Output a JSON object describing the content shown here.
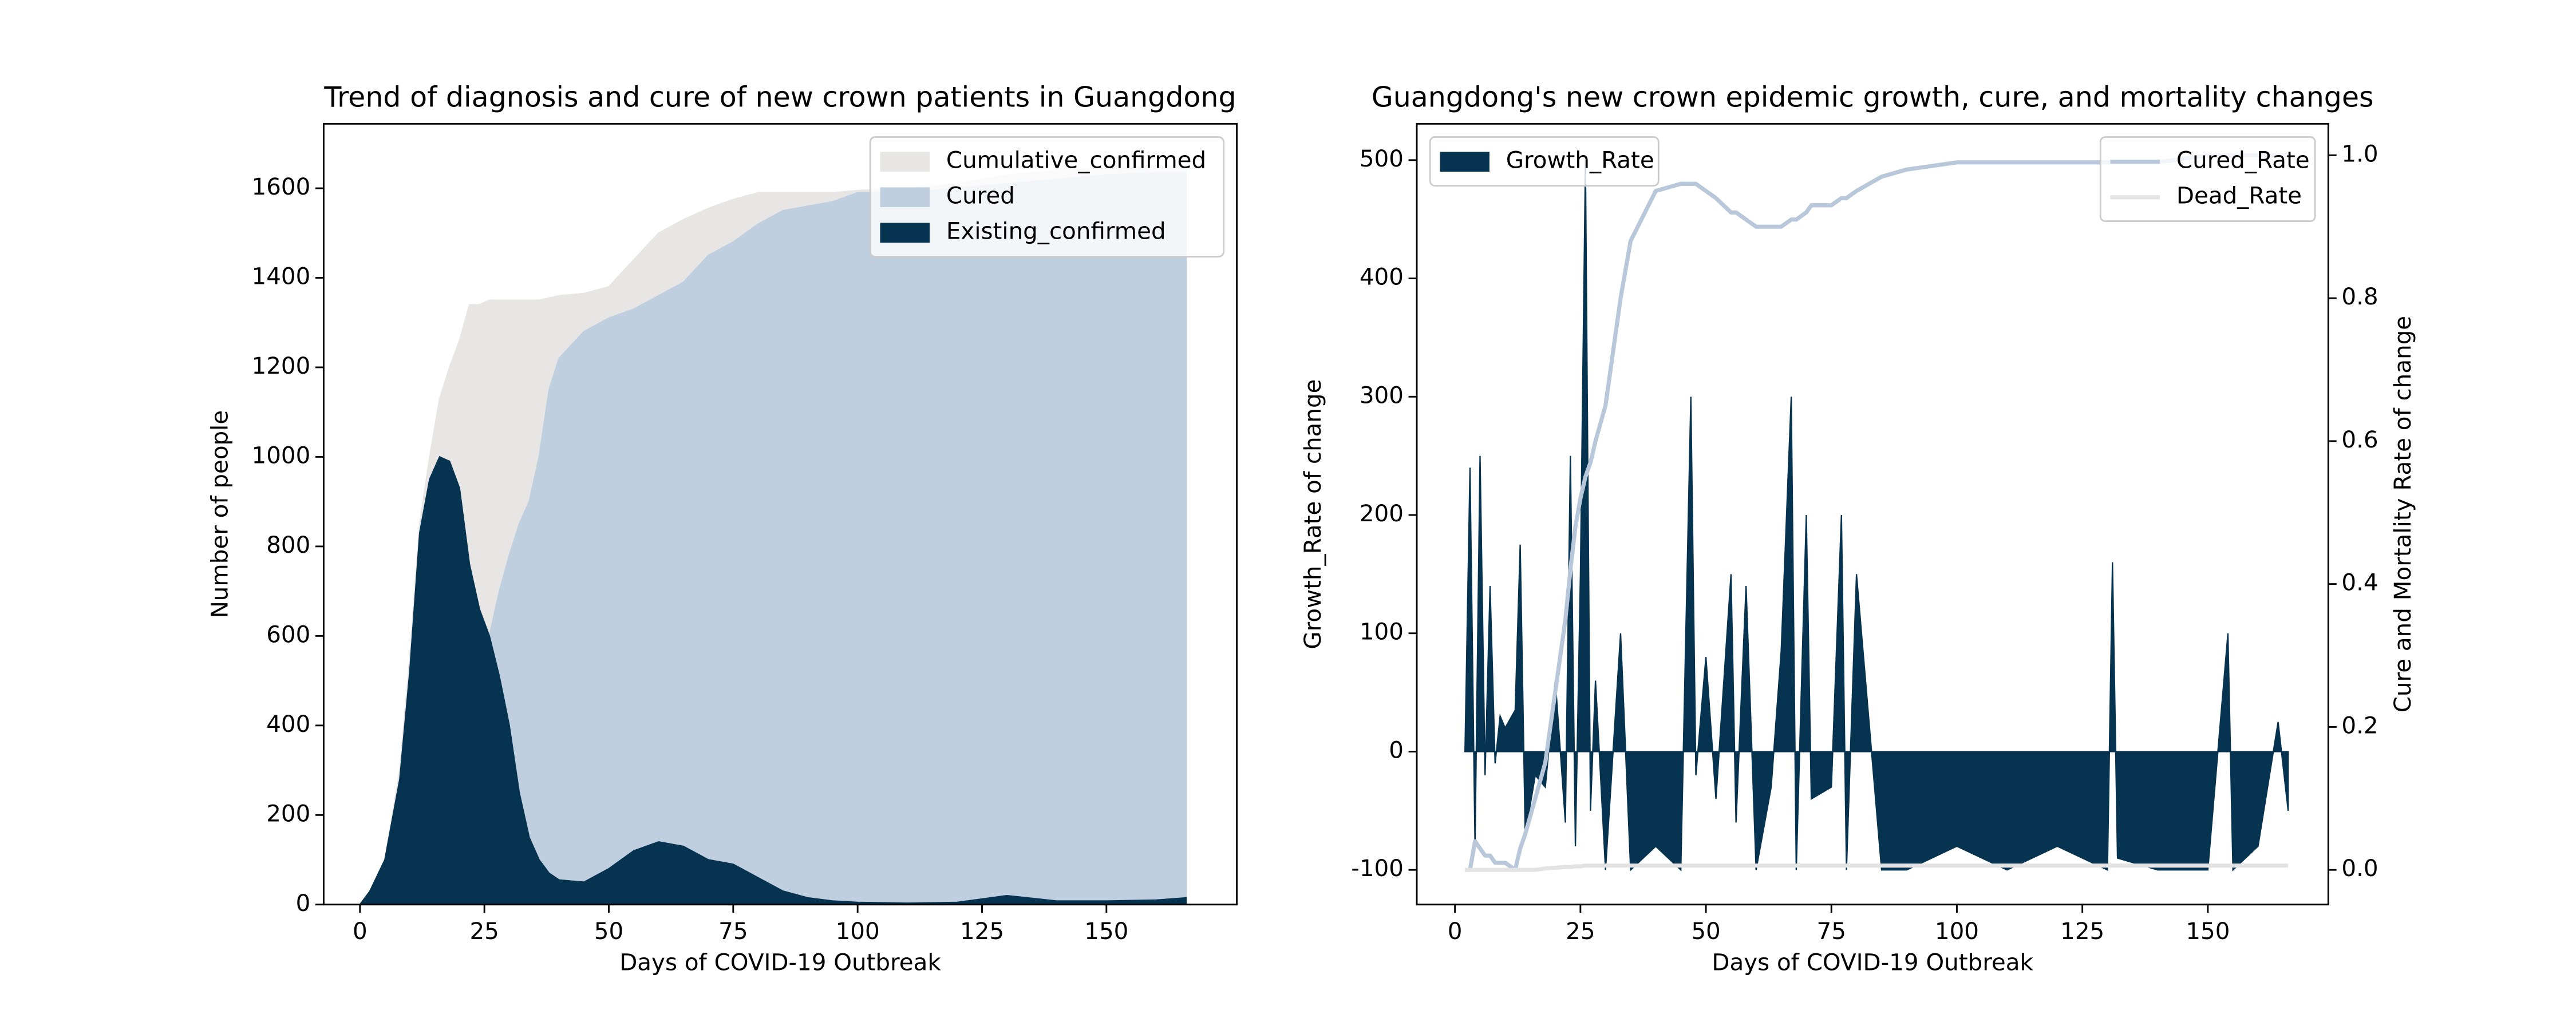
{
  "chart_data": [
    {
      "type": "area",
      "title": "Trend of diagnosis and cure of new crown patients in Guangdong",
      "xlabel": "Days of COVID-19 Outbreak",
      "ylabel": "Number of people",
      "x": [
        0,
        2,
        5,
        8,
        10,
        12,
        14,
        16,
        18,
        20,
        22,
        24,
        26,
        28,
        30,
        32,
        34,
        36,
        38,
        40,
        45,
        50,
        55,
        60,
        65,
        70,
        75,
        80,
        85,
        90,
        95,
        100,
        110,
        120,
        130,
        140,
        150,
        160,
        166
      ],
      "series": [
        {
          "name": "Cumulative_confirmed",
          "color": "#e8e6e5",
          "values": [
            0,
            30,
            100,
            300,
            550,
            850,
            1000,
            1130,
            1200,
            1260,
            1340,
            1340,
            1350,
            1350,
            1350,
            1350,
            1350,
            1350,
            1355,
            1360,
            1365,
            1380,
            1440,
            1500,
            1530,
            1555,
            1575,
            1590,
            1590,
            1590,
            1590,
            1595,
            1600,
            1610,
            1630,
            1640,
            1645,
            1650,
            1650
          ]
        },
        {
          "name": "Cured",
          "color": "#bfcfe0",
          "values": [
            0,
            0,
            0,
            0,
            0,
            0,
            20,
            50,
            150,
            300,
            400,
            500,
            600,
            700,
            780,
            850,
            900,
            1000,
            1150,
            1220,
            1280,
            1310,
            1330,
            1360,
            1390,
            1450,
            1480,
            1520,
            1550,
            1560,
            1570,
            1590,
            1590,
            1600,
            1610,
            1620,
            1630,
            1635,
            1635
          ]
        },
        {
          "name": "Existing_confirmed",
          "color": "#053350",
          "values": [
            0,
            30,
            100,
            280,
            520,
            830,
            950,
            1000,
            990,
            930,
            760,
            660,
            600,
            510,
            400,
            250,
            150,
            100,
            70,
            55,
            50,
            80,
            120,
            140,
            130,
            100,
            90,
            60,
            30,
            15,
            8,
            5,
            3,
            5,
            20,
            8,
            8,
            10,
            15
          ]
        }
      ],
      "xlim": [
        -7.3,
        176.2
      ],
      "ylim": [
        0,
        1744
      ],
      "xticks": [
        0,
        25,
        50,
        75,
        100,
        125,
        150
      ],
      "yticks": [
        0,
        200,
        400,
        600,
        800,
        1000,
        1200,
        1400,
        1600
      ],
      "legend": "upper right"
    },
    {
      "type": "combo",
      "title": "Guangdong's new crown epidemic growth, cure, and mortality changes",
      "xlabel": "Days of COVID-19 Outbreak",
      "ylabel": "Growth_Rate of change",
      "y2label": "Cure and Mortality Rate of change",
      "x": [
        2,
        3,
        4,
        5,
        6,
        7,
        8,
        9,
        10,
        12,
        13,
        14,
        16,
        18,
        20,
        22,
        23,
        24,
        25,
        26,
        27,
        28,
        30,
        33,
        35,
        40,
        45,
        47,
        48,
        50,
        52,
        55,
        56,
        58,
        60,
        63,
        65,
        67,
        68,
        70,
        71,
        75,
        77,
        78,
        80,
        85,
        90,
        100,
        110,
        120,
        130,
        131,
        132,
        140,
        150,
        154,
        155,
        160,
        164,
        166
      ],
      "series": [
        {
          "name": "Growth_Rate",
          "kind": "area",
          "color": "#053350",
          "values": [
            0,
            240,
            -80,
            250,
            -20,
            140,
            -10,
            30,
            20,
            35,
            175,
            -70,
            -20,
            -30,
            60,
            -60,
            250,
            -80,
            150,
            500,
            -50,
            60,
            -100,
            100,
            -100,
            -80,
            -100,
            300,
            -20,
            80,
            -40,
            150,
            -60,
            140,
            -100,
            -30,
            85,
            300,
            -100,
            200,
            -40,
            -30,
            200,
            -100,
            150,
            -100,
            -100,
            -80,
            -100,
            -80,
            -100,
            160,
            -90,
            -100,
            -100,
            100,
            -100,
            -80,
            25,
            -50
          ]
        },
        {
          "name": "Cured_Rate",
          "kind": "line",
          "axis": "y2",
          "color": "#b8c8da",
          "values": [
            0,
            0,
            0.04,
            0.03,
            0.02,
            0.02,
            0.01,
            0.01,
            0.01,
            0,
            0.03,
            0.05,
            0.1,
            0.15,
            0.25,
            0.35,
            0.42,
            0.48,
            0.52,
            0.55,
            0.57,
            0.6,
            0.65,
            0.8,
            0.88,
            0.95,
            0.96,
            0.96,
            0.96,
            0.95,
            0.94,
            0.92,
            0.92,
            0.91,
            0.9,
            0.9,
            0.9,
            0.91,
            0.91,
            0.92,
            0.93,
            0.93,
            0.94,
            0.94,
            0.95,
            0.97,
            0.98,
            0.99,
            0.99,
            0.99,
            0.99,
            0.99,
            0.99,
            0.99,
            1.0,
            1.0,
            1.0,
            1.0,
            1.0,
            1.0
          ]
        },
        {
          "name": "Dead_Rate",
          "kind": "line",
          "axis": "y2",
          "color": "#e3e3e3",
          "values": [
            0,
            0,
            0,
            0,
            0,
            0,
            0,
            0,
            0,
            0,
            0,
            0,
            0,
            0.002,
            0.003,
            0.004,
            0.004,
            0.005,
            0.005,
            0.006,
            0.006,
            0.006,
            0.006,
            0.006,
            0.006,
            0.006,
            0.006,
            0.006,
            0.006,
            0.006,
            0.006,
            0.006,
            0.006,
            0.006,
            0.006,
            0.006,
            0.006,
            0.006,
            0.006,
            0.006,
            0.006,
            0.006,
            0.006,
            0.006,
            0.006,
            0.006,
            0.006,
            0.006,
            0.006,
            0.006,
            0.006,
            0.006,
            0.006,
            0.006,
            0.006,
            0.006,
            0.006,
            0.006,
            0.006,
            0.006
          ]
        }
      ],
      "xlim": [
        -7.6,
        174
      ],
      "ylim": [
        -129.3,
        530.7
      ],
      "y2lim": [
        -0.0485,
        1.044
      ],
      "xticks": [
        0,
        25,
        50,
        75,
        100,
        125,
        150
      ],
      "yticks": [
        -100,
        0,
        100,
        200,
        300,
        400,
        500
      ],
      "y2ticks": [
        {
          "value": 0,
          "label": "0.0"
        },
        0.2,
        0.4,
        0.6,
        0.8,
        {
          "value": 1,
          "label": "1.0"
        }
      ],
      "legend": "upper left",
      "legend2": "upper right"
    }
  ]
}
